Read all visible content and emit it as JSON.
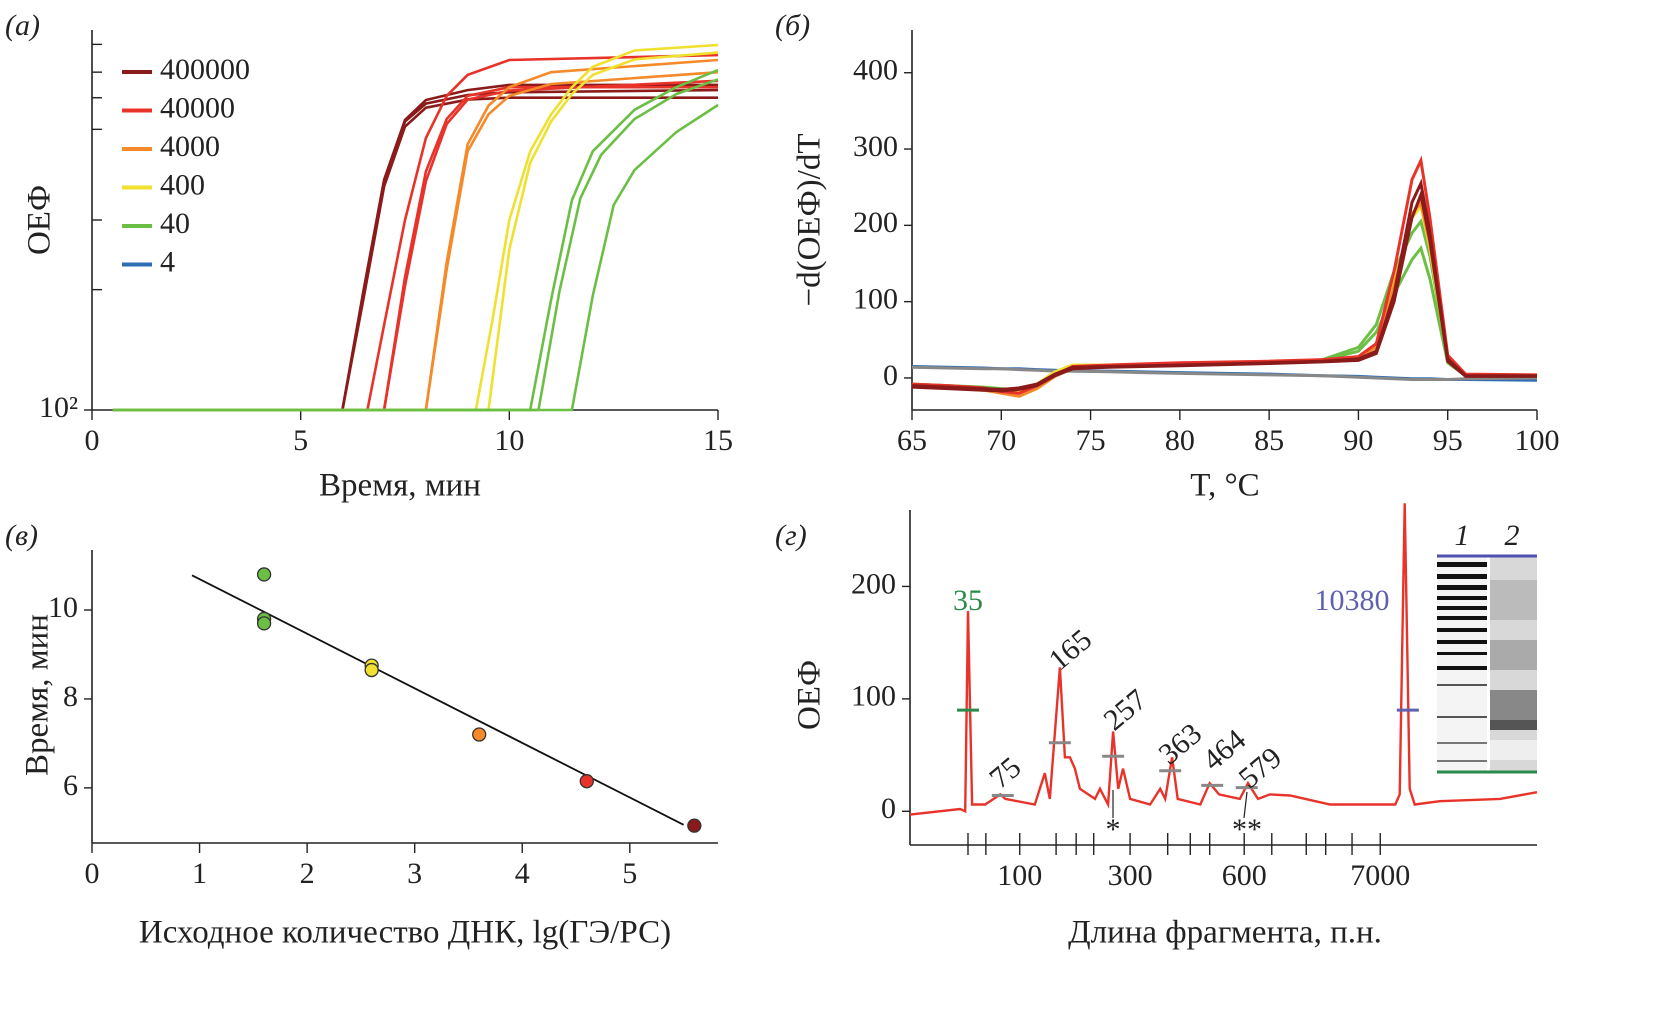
{
  "chart_data": [
    {
      "type": "line",
      "panel_label": "(а)",
      "ylabel": "ОЕФ",
      "xlabel": "Время, мин",
      "xlim": [
        0,
        15
      ],
      "xticks": [
        0,
        5,
        10,
        15
      ],
      "ylim": [
        100,
        10000
      ],
      "ylog": true,
      "yticks": [
        {
          "value": 100,
          "label": "10²"
        }
      ],
      "yminorticks": [
        430,
        1000,
        3000,
        4400,
        6000,
        8400
      ],
      "legend": "upper left",
      "series": [
        {
          "name": "400000",
          "color": "#8b1a1a",
          "curves": [
            {
              "x": [
                0.5,
                6,
                6.5,
                7,
                7.5,
                8,
                9,
                10,
                15
              ],
              "values": [
                100,
                100,
                420,
                1630,
                3360,
                4280,
                4830,
                5140,
                5140
              ]
            },
            {
              "x": [
                0.5,
                6,
                6.5,
                7,
                7.5,
                8,
                9,
                10,
                15
              ],
              "values": [
                100,
                100,
                400,
                1600,
                3300,
                4100,
                4550,
                4700,
                4830
              ]
            },
            {
              "x": [
                0.5,
                6,
                6.5,
                7,
                7.5,
                8,
                9,
                10,
                15
              ],
              "values": [
                100,
                100,
                380,
                1500,
                3100,
                3900,
                4300,
                4400,
                4400
              ]
            }
          ]
        },
        {
          "name": "40000",
          "color": "#e8332a",
          "curves": [
            {
              "x": [
                0.5,
                6.6,
                7,
                7.5,
                8,
                8.5,
                9,
                10,
                15
              ],
              "values": [
                100,
                100,
                280,
                1000,
                2700,
                4500,
                5800,
                6950,
                7380
              ]
            },
            {
              "x": [
                0.5,
                7,
                7.5,
                8,
                8.5,
                9,
                10,
                15
              ],
              "values": [
                100,
                100,
                500,
                1800,
                3400,
                4500,
                5000,
                5000
              ]
            },
            {
              "x": [
                0.5,
                7,
                7.5,
                8,
                8.5,
                9,
                10,
                15
              ],
              "values": [
                100,
                100,
                450,
                1600,
                3200,
                4300,
                4800,
                5400
              ]
            }
          ]
        },
        {
          "name": "4000",
          "color": "#f58a2a",
          "curves": [
            {
              "x": [
                0.5,
                8,
                8.5,
                9,
                9.5,
                10,
                11,
                15
              ],
              "values": [
                100,
                100,
                600,
                2500,
                4000,
                5000,
                6000,
                6950
              ]
            },
            {
              "x": [
                0.5,
                8,
                8.5,
                9,
                9.5,
                10,
                11,
                15
              ],
              "values": [
                100,
                100,
                550,
                2300,
                3600,
                4500,
                5200,
                6000
              ]
            }
          ]
        },
        {
          "name": "400",
          "color": "#f0e030",
          "curves": [
            {
              "x": [
                0.5,
                9.2,
                9.6,
                10,
                10.5,
                11,
                11.5,
                12,
                13,
                15
              ],
              "values": [
                100,
                100,
                300,
                1000,
                2300,
                3600,
                5000,
                6400,
                7800,
                8340
              ]
            },
            {
              "x": [
                0.5,
                9.5,
                10,
                10.5,
                11,
                11.5,
                12,
                13,
                15
              ],
              "values": [
                100,
                100,
                700,
                2000,
                3300,
                4600,
                5800,
                7000,
                7600
              ]
            }
          ]
        },
        {
          "name": "40",
          "color": "#6cbf45",
          "curves": [
            {
              "x": [
                0.5,
                10.5,
                11,
                11.5,
                12,
                13,
                14,
                15
              ],
              "values": [
                100,
                100,
                380,
                1270,
                2300,
                3800,
                5000,
                6150
              ]
            },
            {
              "x": [
                0.5,
                10.7,
                11.2,
                11.7,
                12.2,
                13,
                14,
                15
              ],
              "values": [
                100,
                100,
                420,
                1300,
                2200,
                3400,
                4600,
                5500
              ]
            },
            {
              "x": [
                0.5,
                11.5,
                12,
                12.5,
                13,
                14,
                15
              ],
              "values": [
                100,
                100,
                400,
                1200,
                1830,
                2900,
                4030
              ]
            }
          ]
        },
        {
          "name": "4",
          "color": "#2e6db4",
          "curves": []
        }
      ]
    },
    {
      "type": "line",
      "panel_label": "(б)",
      "ylabel": "−d(ОЕФ)/dT",
      "xlabel": "T, °C",
      "xlim": [
        65,
        100
      ],
      "xticks": [
        65,
        70,
        75,
        80,
        85,
        90,
        95,
        100
      ],
      "ylim": [
        -42,
        456
      ],
      "yticks": [
        0,
        100,
        200,
        300,
        400
      ],
      "x": [
        65,
        67,
        69,
        70,
        71,
        72,
        73,
        74,
        76,
        80,
        85,
        88,
        90,
        91,
        92,
        93,
        93.5,
        94,
        95,
        96,
        100
      ],
      "series": [
        {
          "color": "#2e6db4",
          "values": [
            15,
            14,
            13,
            12,
            12,
            11,
            10,
            9,
            9,
            7,
            5,
            3,
            2,
            1,
            0,
            -1,
            -1,
            -1,
            -2,
            -2,
            -3
          ]
        },
        {
          "color": "#888888",
          "values": [
            14,
            13,
            12,
            12,
            11,
            10,
            9,
            9,
            8,
            6,
            4,
            3,
            1,
            0,
            -1,
            -2,
            -2,
            -2,
            -2,
            -1,
            0
          ]
        },
        {
          "color": "#6cbf45",
          "values": [
            -8,
            -10,
            -12,
            -14,
            -16,
            -8,
            5,
            13,
            15,
            17,
            20,
            23,
            35,
            60,
            110,
            155,
            170,
            130,
            20,
            3,
            2
          ]
        },
        {
          "color": "#6cbf45",
          "values": [
            -8,
            -10,
            -13,
            -15,
            -18,
            -10,
            4,
            13,
            15,
            17,
            20,
            24,
            40,
            70,
            140,
            190,
            205,
            160,
            25,
            4,
            3
          ]
        },
        {
          "color": "#f0e030",
          "values": [
            -9,
            -11,
            -14,
            -16,
            -18,
            -8,
            8,
            17,
            17,
            19,
            21,
            23,
            27,
            42,
            125,
            210,
            225,
            170,
            24,
            4,
            3
          ]
        },
        {
          "color": "#f58a2a",
          "values": [
            -10,
            -13,
            -16,
            -20,
            -24,
            -14,
            2,
            13,
            16,
            18,
            21,
            23,
            27,
            40,
            120,
            215,
            230,
            175,
            25,
            4,
            3
          ]
        },
        {
          "color": "#e8332a",
          "values": [
            -8,
            -10,
            -13,
            -18,
            -20,
            -10,
            4,
            15,
            17,
            20,
            22,
            24,
            28,
            45,
            140,
            260,
            285,
            210,
            30,
            5,
            4
          ]
        },
        {
          "color": "#8b1a1a",
          "values": [
            -12,
            -14,
            -16,
            -17,
            -15,
            -10,
            3,
            12,
            14,
            16,
            19,
            21,
            23,
            32,
            100,
            210,
            240,
            180,
            22,
            2,
            2
          ]
        },
        {
          "color": "#8b1a1a",
          "values": [
            -10,
            -12,
            -14,
            -15,
            -13,
            -8,
            5,
            14,
            15,
            17,
            20,
            22,
            25,
            35,
            110,
            230,
            255,
            190,
            25,
            3,
            3
          ]
        }
      ]
    },
    {
      "type": "scatter",
      "panel_label": "(в)",
      "ylabel": "Время, мин",
      "xlabel": "Исходное количество ДНК, lg(ГЭ/РС)",
      "xlim": [
        0,
        5.82
      ],
      "xticks": [
        0,
        1,
        2,
        3,
        4,
        5
      ],
      "ylim": [
        4.76,
        11.35
      ],
      "yticks": [
        6,
        8,
        10
      ],
      "points": {
        "x": [
          1.6,
          1.6,
          1.6,
          2.6,
          2.6,
          3.6,
          4.6,
          5.6
        ],
        "values": [
          10.8,
          9.8,
          9.7,
          8.75,
          8.65,
          7.2,
          6.15,
          5.15
        ],
        "colors": [
          "#6cbf45",
          "#6cbf45",
          "#6cbf45",
          "#f0e030",
          "#f0e030",
          "#f58a2a",
          "#e8332a",
          "#8b1a1a"
        ]
      },
      "fit": {
        "x": [
          0.93,
          5.5
        ],
        "values": [
          10.78,
          5.17
        ]
      }
    },
    {
      "type": "line",
      "panel_label": "(г)",
      "ylabel": "ОЕФ",
      "xlabel": "Длина фрагмента, п.н.",
      "xlim": [
        0,
        100
      ],
      "xticks": [
        {
          "value": 17.5,
          "label": "100"
        },
        {
          "value": 35.1,
          "label": "300"
        },
        {
          "value": 53.3,
          "label": "600"
        },
        {
          "value": 75.0,
          "label": "7000"
        }
      ],
      "xminorticks": [
        9.25,
        12.1,
        23.3,
        26.5,
        29.3,
        41.1,
        44.7,
        47.8,
        57.7,
        63.2,
        66.3,
        70.5
      ],
      "ylim": [
        -30,
        268
      ],
      "yticks": [
        0,
        100,
        200
      ],
      "trace": {
        "color": "#e8332a",
        "x": [
          0,
          8.0,
          8.8,
          9.25,
          9.9,
          12,
          14.4,
          15.2,
          19.9,
          21.5,
          22.3,
          23.9,
          24.7,
          25.5,
          26.3,
          27.1,
          29.5,
          30.3,
          31.6,
          32.4,
          33.2,
          33.97,
          35.1,
          38.3,
          39.9,
          40.7,
          41.8,
          42.7,
          46.3,
          47.8,
          49.3,
          52.6,
          53.9,
          55.5,
          57.4,
          60.6,
          67.0,
          77.4,
          78.1,
          78.9,
          79.7,
          80.5,
          84.5,
          94.1,
          100
        ],
        "values": [
          -3,
          2,
          0,
          178,
          6,
          6,
          15,
          11,
          6,
          34,
          11,
          128,
          48,
          48,
          38,
          20,
          11,
          20,
          6,
          71,
          20,
          38,
          11,
          6,
          20,
          11,
          48,
          11,
          6,
          25,
          15,
          11,
          25,
          11,
          15,
          14,
          6,
          6,
          15,
          274,
          20,
          6,
          9,
          11,
          17
        ]
      },
      "peak_marks": [
        {
          "x": 9.25,
          "y": 90,
          "color": "#2a8a4a"
        },
        {
          "x": 14.8,
          "y": 14,
          "color": "#888888"
        },
        {
          "x": 23.9,
          "y": 61,
          "color": "#888888"
        },
        {
          "x": 32.4,
          "y": 49,
          "color": "#888888"
        },
        {
          "x": 41.5,
          "y": 36,
          "color": "#888888"
        },
        {
          "x": 48.2,
          "y": 23,
          "color": "#888888"
        },
        {
          "x": 53.7,
          "y": 21,
          "color": "#888888"
        },
        {
          "x": 79.4,
          "y": 90,
          "color": "#6060b0"
        }
      ],
      "annotations": [
        {
          "text": "35",
          "color": "#2a8a4a"
        },
        {
          "text": "75",
          "color": "#222222"
        },
        {
          "text": "165",
          "color": "#222222"
        },
        {
          "text": "257",
          "color": "#222222"
        },
        {
          "text": "363",
          "color": "#222222"
        },
        {
          "text": "464",
          "color": "#222222"
        },
        {
          "text": "579",
          "color": "#222222"
        },
        {
          "text": "10380",
          "color": "#6060b0"
        },
        {
          "text": "*",
          "color": "#222222"
        },
        {
          "text": "**",
          "color": "#222222"
        }
      ],
      "lanes": [
        "1",
        "2"
      ]
    }
  ]
}
